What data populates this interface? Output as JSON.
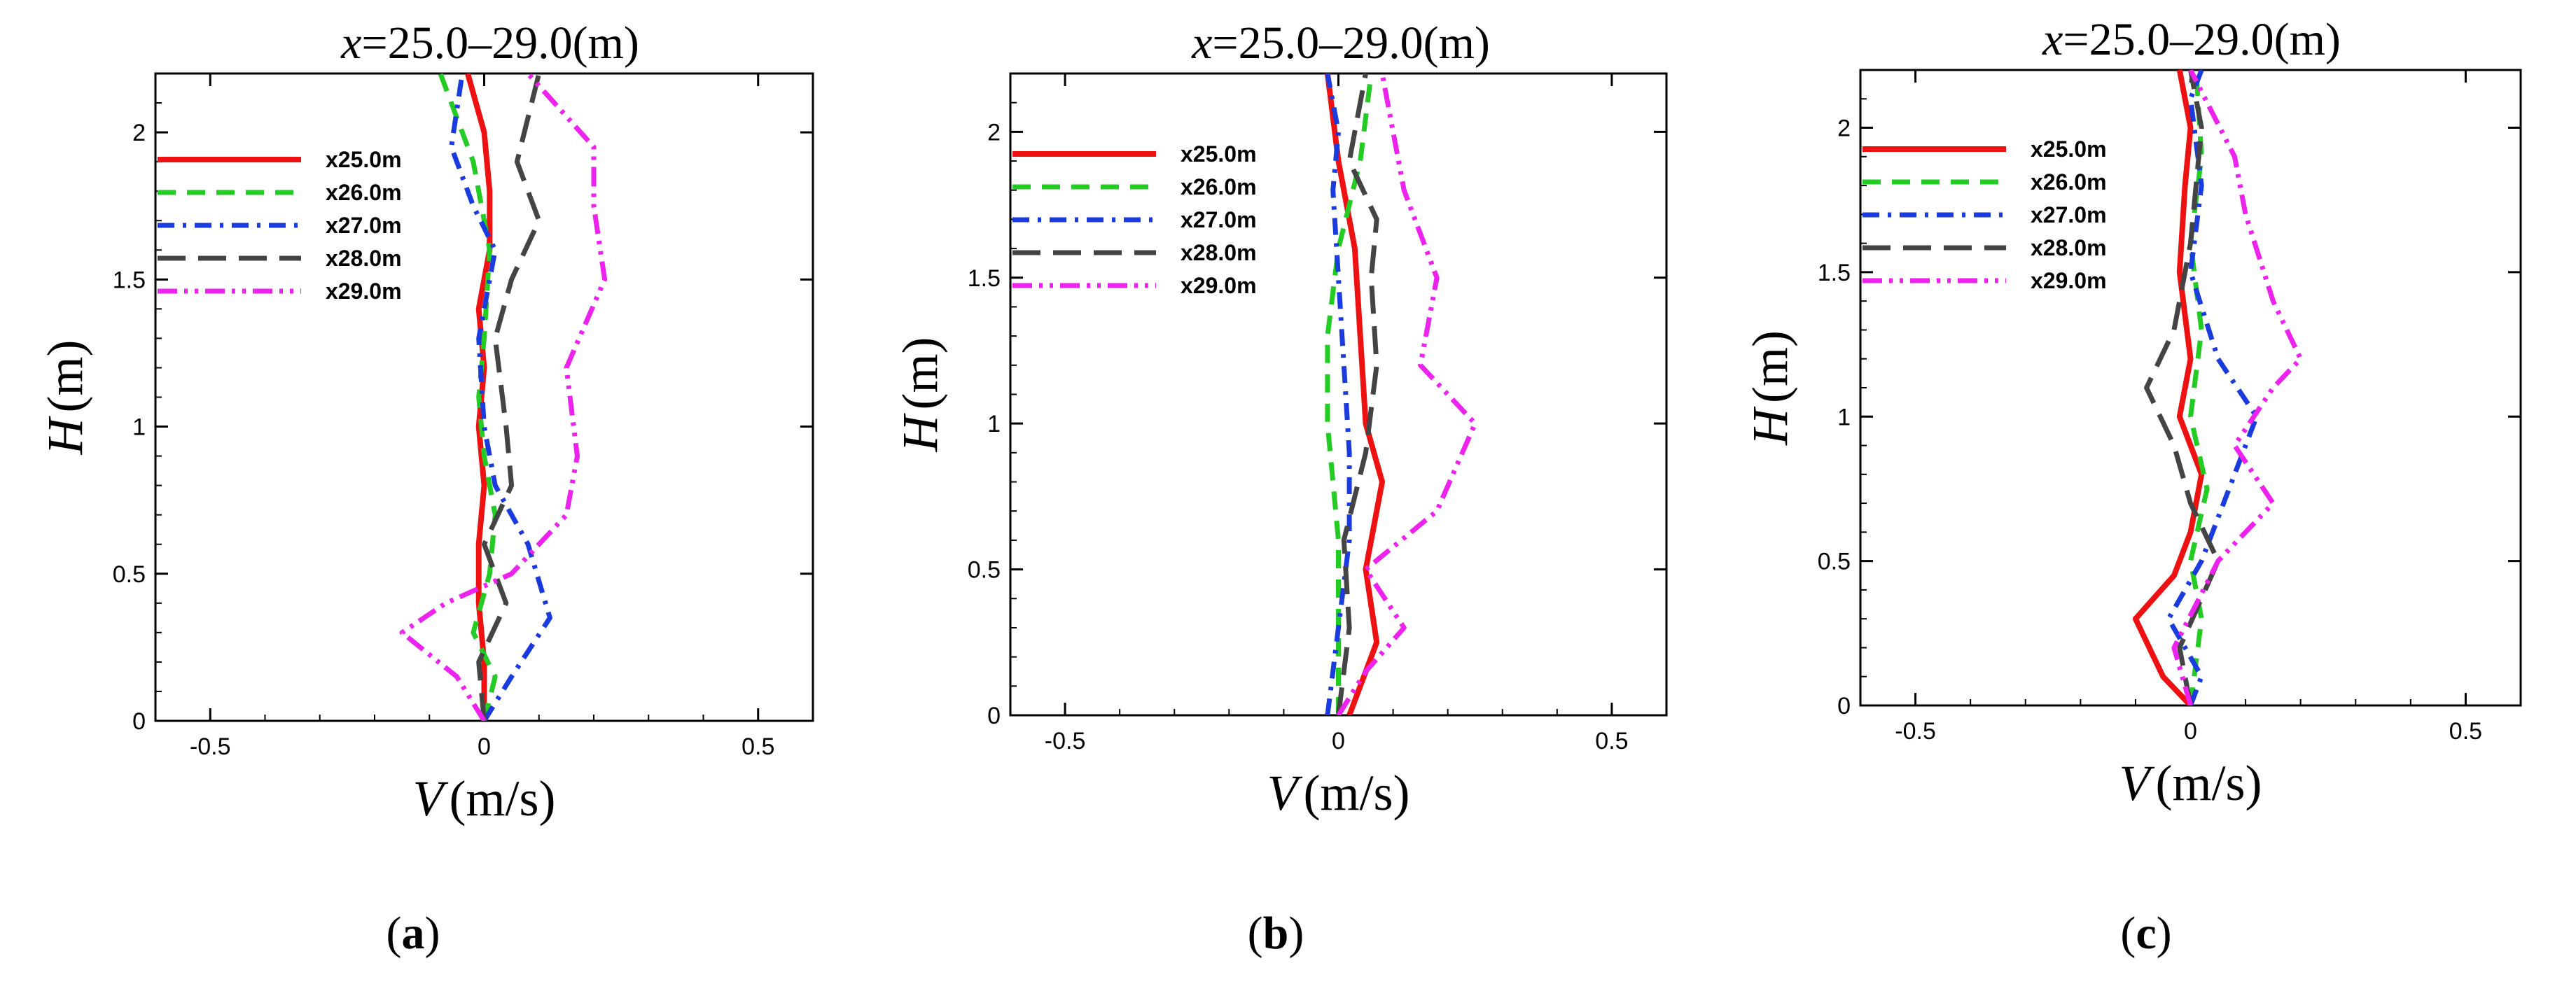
{
  "chart_data": [
    {
      "type": "line",
      "panel_label": "a",
      "title": "x=25.0–29.0(m)",
      "xlabel": "V (m/s)",
      "ylabel": "H (m)",
      "xlim": [
        -0.6,
        0.6
      ],
      "ylim": [
        0,
        2.2
      ],
      "xticks": [
        "-0.5",
        "0",
        "0.5"
      ],
      "yticks": [
        "0",
        "0.5",
        "1",
        "1.5",
        "2"
      ],
      "legend": "top-left",
      "series": [
        {
          "name": "x25.0m",
          "color": "#ee1111",
          "style": "solid",
          "points": [
            [
              0.0,
              0.0
            ],
            [
              0.0,
              0.2
            ],
            [
              -0.01,
              0.4
            ],
            [
              -0.01,
              0.6
            ],
            [
              0.0,
              0.8
            ],
            [
              -0.01,
              1.0
            ],
            [
              0.0,
              1.2
            ],
            [
              -0.01,
              1.4
            ],
            [
              0.01,
              1.6
            ],
            [
              0.01,
              1.8
            ],
            [
              0.0,
              2.0
            ],
            [
              -0.03,
              2.2
            ]
          ]
        },
        {
          "name": "x26.0m",
          "color": "#22cc22",
          "style": "dash",
          "points": [
            [
              0.0,
              0.0
            ],
            [
              0.02,
              0.15
            ],
            [
              -0.02,
              0.3
            ],
            [
              0.01,
              0.5
            ],
            [
              0.02,
              0.7
            ],
            [
              0.0,
              0.9
            ],
            [
              -0.01,
              1.1
            ],
            [
              0.0,
              1.3
            ],
            [
              0.01,
              1.6
            ],
            [
              -0.02,
              1.9
            ],
            [
              -0.08,
              2.2
            ]
          ]
        },
        {
          "name": "x27.0m",
          "color": "#1a3bdd",
          "style": "dashdot",
          "points": [
            [
              0.0,
              0.0
            ],
            [
              0.05,
              0.15
            ],
            [
              0.12,
              0.35
            ],
            [
              0.08,
              0.6
            ],
            [
              0.02,
              0.8
            ],
            [
              0.0,
              1.0
            ],
            [
              -0.01,
              1.3
            ],
            [
              0.02,
              1.6
            ],
            [
              -0.02,
              1.75
            ],
            [
              -0.06,
              1.95
            ],
            [
              -0.04,
              2.2
            ]
          ]
        },
        {
          "name": "x28.0m",
          "color": "#444444",
          "style": "longdash",
          "points": [
            [
              0.0,
              0.0
            ],
            [
              -0.01,
              0.2
            ],
            [
              0.04,
              0.4
            ],
            [
              0.0,
              0.6
            ],
            [
              0.05,
              0.8
            ],
            [
              0.04,
              1.0
            ],
            [
              0.02,
              1.3
            ],
            [
              0.05,
              1.5
            ],
            [
              0.1,
              1.7
            ],
            [
              0.06,
              1.9
            ],
            [
              0.1,
              2.2
            ]
          ]
        },
        {
          "name": "x29.0m",
          "color": "#ee22ee",
          "style": "dashdotdot",
          "points": [
            [
              0.0,
              0.0
            ],
            [
              -0.05,
              0.15
            ],
            [
              -0.15,
              0.3
            ],
            [
              -0.07,
              0.4
            ],
            [
              0.05,
              0.5
            ],
            [
              0.15,
              0.7
            ],
            [
              0.17,
              0.9
            ],
            [
              0.15,
              1.2
            ],
            [
              0.22,
              1.5
            ],
            [
              0.2,
              1.75
            ],
            [
              0.2,
              1.95
            ],
            [
              0.08,
              2.2
            ]
          ]
        }
      ]
    },
    {
      "type": "line",
      "panel_label": "b",
      "title": "x=25.0–29.0(m)",
      "xlabel": "V (m/s)",
      "ylabel": "H (m)",
      "xlim": [
        -0.6,
        0.6
      ],
      "ylim": [
        0,
        2.2
      ],
      "xticks": [
        "-0.5",
        "0",
        "0.5"
      ],
      "yticks": [
        "0",
        "0.5",
        "1",
        "1.5",
        "2"
      ],
      "legend": "top-left",
      "series": [
        {
          "name": "x25.0m",
          "color": "#ee1111",
          "style": "solid",
          "points": [
            [
              0.02,
              0.0
            ],
            [
              0.07,
              0.25
            ],
            [
              0.05,
              0.5
            ],
            [
              0.08,
              0.8
            ],
            [
              0.05,
              1.0
            ],
            [
              0.04,
              1.3
            ],
            [
              0.03,
              1.6
            ],
            [
              0.0,
              1.9
            ],
            [
              -0.02,
              2.2
            ]
          ]
        },
        {
          "name": "x26.0m",
          "color": "#22cc22",
          "style": "dash",
          "points": [
            [
              0.0,
              0.0
            ],
            [
              0.0,
              0.3
            ],
            [
              0.0,
              0.6
            ],
            [
              -0.02,
              1.0
            ],
            [
              -0.02,
              1.3
            ],
            [
              0.0,
              1.6
            ],
            [
              0.04,
              1.9
            ],
            [
              0.06,
              2.2
            ]
          ]
        },
        {
          "name": "x27.0m",
          "color": "#1a3bdd",
          "style": "dashdot",
          "points": [
            [
              -0.02,
              0.0
            ],
            [
              0.0,
              0.3
            ],
            [
              0.02,
              0.6
            ],
            [
              0.02,
              0.9
            ],
            [
              0.01,
              1.2
            ],
            [
              0.0,
              1.5
            ],
            [
              -0.01,
              1.8
            ],
            [
              0.0,
              2.0
            ],
            [
              -0.02,
              2.2
            ]
          ]
        },
        {
          "name": "x28.0m",
          "color": "#444444",
          "style": "longdash",
          "points": [
            [
              0.0,
              0.0
            ],
            [
              0.02,
              0.3
            ],
            [
              0.01,
              0.6
            ],
            [
              0.05,
              0.9
            ],
            [
              0.07,
              1.2
            ],
            [
              0.06,
              1.5
            ],
            [
              0.07,
              1.7
            ],
            [
              0.02,
              1.9
            ],
            [
              0.05,
              2.2
            ]
          ]
        },
        {
          "name": "x29.0m",
          "color": "#ee22ee",
          "style": "dashdotdot",
          "points": [
            [
              0.0,
              0.0
            ],
            [
              0.05,
              0.15
            ],
            [
              0.12,
              0.3
            ],
            [
              0.05,
              0.5
            ],
            [
              0.18,
              0.7
            ],
            [
              0.25,
              1.0
            ],
            [
              0.15,
              1.2
            ],
            [
              0.18,
              1.5
            ],
            [
              0.12,
              1.8
            ],
            [
              0.08,
              2.2
            ]
          ]
        }
      ]
    },
    {
      "type": "line",
      "panel_label": "c",
      "title": "x=25.0–29.0(m)",
      "xlabel": "V (m/s)",
      "ylabel": "H (m)",
      "xlim": [
        -0.6,
        0.6
      ],
      "ylim": [
        0,
        2.2
      ],
      "xticks": [
        "-0.5",
        "0",
        "0.5"
      ],
      "yticks": [
        "0",
        "0.5",
        "1",
        "1.5",
        "2"
      ],
      "legend": "top-left",
      "series": [
        {
          "name": "x25.0m",
          "color": "#ee1111",
          "style": "solid",
          "points": [
            [
              0.0,
              0.0
            ],
            [
              -0.05,
              0.1
            ],
            [
              -0.1,
              0.3
            ],
            [
              -0.03,
              0.45
            ],
            [
              0.0,
              0.6
            ],
            [
              0.02,
              0.8
            ],
            [
              -0.02,
              1.0
            ],
            [
              0.0,
              1.2
            ],
            [
              -0.02,
              1.5
            ],
            [
              -0.01,
              1.8
            ],
            [
              0.0,
              2.0
            ],
            [
              -0.02,
              2.2
            ]
          ]
        },
        {
          "name": "x26.0m",
          "color": "#22cc22",
          "style": "dash",
          "points": [
            [
              0.0,
              0.0
            ],
            [
              0.02,
              0.3
            ],
            [
              0.0,
              0.5
            ],
            [
              0.03,
              0.75
            ],
            [
              0.0,
              1.0
            ],
            [
              0.02,
              1.3
            ],
            [
              0.0,
              1.6
            ],
            [
              0.02,
              1.9
            ],
            [
              0.01,
              2.2
            ]
          ]
        },
        {
          "name": "x27.0m",
          "color": "#1a3bdd",
          "style": "dashdot",
          "points": [
            [
              0.0,
              0.0
            ],
            [
              0.02,
              0.1
            ],
            [
              -0.04,
              0.3
            ],
            [
              0.02,
              0.5
            ],
            [
              0.08,
              0.8
            ],
            [
              0.12,
              1.0
            ],
            [
              0.05,
              1.2
            ],
            [
              0.0,
              1.5
            ],
            [
              0.02,
              1.8
            ],
            [
              0.0,
              2.1
            ],
            [
              0.02,
              2.2
            ]
          ]
        },
        {
          "name": "x28.0m",
          "color": "#444444",
          "style": "longdash",
          "points": [
            [
              0.0,
              0.0
            ],
            [
              -0.02,
              0.2
            ],
            [
              0.05,
              0.5
            ],
            [
              0.0,
              0.7
            ],
            [
              -0.03,
              0.9
            ],
            [
              -0.08,
              1.1
            ],
            [
              -0.03,
              1.3
            ],
            [
              0.0,
              1.6
            ],
            [
              0.02,
              2.0
            ],
            [
              0.0,
              2.2
            ]
          ]
        },
        {
          "name": "x29.0m",
          "color": "#ee22ee",
          "style": "dashdotdot",
          "points": [
            [
              0.0,
              0.0
            ],
            [
              -0.03,
              0.2
            ],
            [
              0.05,
              0.5
            ],
            [
              0.15,
              0.7
            ],
            [
              0.08,
              0.9
            ],
            [
              0.15,
              1.1
            ],
            [
              0.2,
              1.2
            ],
            [
              0.15,
              1.4
            ],
            [
              0.1,
              1.7
            ],
            [
              0.08,
              1.9
            ],
            [
              0.0,
              2.2
            ]
          ]
        }
      ]
    }
  ]
}
